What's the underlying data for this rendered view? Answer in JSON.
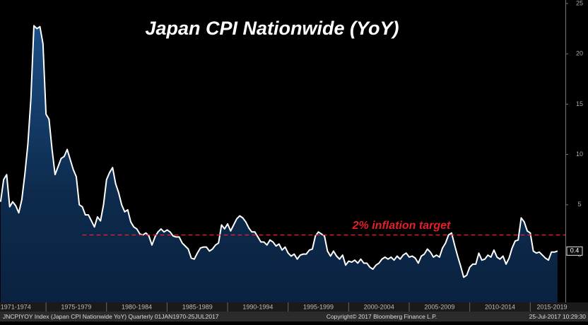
{
  "chart_data": {
    "type": "area",
    "title": "Japan CPI Nationwide (YoY)",
    "footer_left": "JNCPIYOY Index (Japan CPI Nationwide YoY)  Quarterly 01JAN1970-25JUL2017",
    "footer_center": "Copyright© 2017 Bloomberg Finance L.P.",
    "footer_right": "25-Jul-2017 10:29:30",
    "xlim": [
      1971.2,
      2017.9
    ],
    "ylim": [
      -4.7,
      25.35
    ],
    "yticks": [
      0,
      5,
      10,
      15,
      20,
      25
    ],
    "xticks": [
      {
        "value": 1972.5,
        "label": "1971-1974"
      },
      {
        "value": 1977.5,
        "label": "1975-1979"
      },
      {
        "value": 1982.5,
        "label": "1980-1984"
      },
      {
        "value": 1987.5,
        "label": "1985-1989"
      },
      {
        "value": 1992.5,
        "label": "1990-1994"
      },
      {
        "value": 1997.5,
        "label": "1995-1999"
      },
      {
        "value": 2002.5,
        "label": "2000-2004"
      },
      {
        "value": 2007.5,
        "label": "2005-2009"
      },
      {
        "value": 2012.5,
        "label": "2010-2014"
      },
      {
        "value": 2017.5,
        "label": "2015-2019"
      }
    ],
    "reference_line": {
      "value": 2,
      "x_start": 1978,
      "label": "2% inflation target",
      "color": "#e3202a"
    },
    "x": [
      1971.25,
      1971.5,
      1971.75,
      1972,
      1972.25,
      1972.5,
      1972.75,
      1973,
      1973.25,
      1973.5,
      1973.75,
      1974,
      1974.25,
      1974.5,
      1974.75,
      1975,
      1975.25,
      1975.5,
      1975.75,
      1976,
      1976.25,
      1976.5,
      1976.75,
      1977,
      1977.25,
      1977.5,
      1977.75,
      1978,
      1978.25,
      1978.5,
      1978.75,
      1979,
      1979.25,
      1979.5,
      1979.75,
      1980,
      1980.25,
      1980.5,
      1980.75,
      1981,
      1981.25,
      1981.5,
      1981.75,
      1982,
      1982.25,
      1982.5,
      1982.75,
      1983,
      1983.25,
      1983.5,
      1983.75,
      1984,
      1984.25,
      1984.5,
      1984.75,
      1985,
      1985.25,
      1985.5,
      1985.75,
      1986,
      1986.25,
      1986.5,
      1986.75,
      1987,
      1987.25,
      1987.5,
      1987.75,
      1988,
      1988.25,
      1988.5,
      1988.75,
      1989,
      1989.25,
      1989.5,
      1989.75,
      1990,
      1990.25,
      1990.5,
      1990.75,
      1991,
      1991.25,
      1991.5,
      1991.75,
      1992,
      1992.25,
      1992.5,
      1992.75,
      1993,
      1993.25,
      1993.5,
      1993.75,
      1994,
      1994.25,
      1994.5,
      1994.75,
      1995,
      1995.25,
      1995.5,
      1995.75,
      1996,
      1996.25,
      1996.5,
      1996.75,
      1997,
      1997.25,
      1997.5,
      1997.75,
      1998,
      1998.25,
      1998.5,
      1998.75,
      1999,
      1999.25,
      1999.5,
      1999.75,
      2000,
      2000.25,
      2000.5,
      2000.75,
      2001,
      2001.25,
      2001.5,
      2001.75,
      2002,
      2002.25,
      2002.5,
      2002.75,
      2003,
      2003.25,
      2003.5,
      2003.75,
      2004,
      2004.25,
      2004.5,
      2004.75,
      2005,
      2005.25,
      2005.5,
      2005.75,
      2006,
      2006.25,
      2006.5,
      2006.75,
      2007,
      2007.25,
      2007.5,
      2007.75,
      2008,
      2008.25,
      2008.5,
      2008.75,
      2009,
      2009.25,
      2009.5,
      2009.75,
      2010,
      2010.25,
      2010.5,
      2010.75,
      2011,
      2011.25,
      2011.5,
      2011.75,
      2012,
      2012.25,
      2012.5,
      2012.75,
      2013,
      2013.25,
      2013.5,
      2013.75,
      2014,
      2014.25,
      2014.5,
      2014.75,
      2015,
      2015.25,
      2015.5,
      2015.75,
      2016,
      2016.25,
      2016.5,
      2016.75,
      2017,
      2017.25
    ],
    "series": [
      {
        "name": "JNCPIYOY Index",
        "color": "#ffffff",
        "values": [
          5.3,
          7.5,
          8.0,
          4.8,
          5.3,
          4.9,
          4.2,
          5.5,
          8.0,
          11.0,
          15.5,
          22.8,
          22.5,
          22.7,
          21.0,
          14.0,
          13.5,
          10.5,
          8.0,
          8.8,
          9.6,
          9.8,
          10.5,
          9.5,
          8.5,
          7.8,
          5.0,
          4.8,
          4.0,
          4.0,
          3.4,
          2.8,
          3.8,
          3.4,
          5.0,
          7.5,
          8.2,
          8.7,
          7.1,
          6.2,
          5.0,
          4.3,
          4.5,
          3.3,
          2.8,
          2.6,
          2.1,
          2.0,
          2.2,
          1.9,
          1.0,
          1.8,
          2.3,
          2.6,
          2.3,
          2.5,
          2.3,
          1.9,
          1.8,
          1.8,
          1.2,
          0.9,
          0.6,
          -0.3,
          -0.4,
          0.2,
          0.7,
          0.8,
          0.8,
          0.4,
          0.6,
          1.0,
          1.2,
          3.0,
          2.6,
          3.1,
          2.4,
          3.0,
          3.6,
          3.9,
          3.7,
          3.3,
          2.7,
          2.3,
          2.3,
          1.8,
          1.3,
          1.3,
          1.0,
          1.5,
          1.3,
          0.9,
          1.1,
          0.5,
          0.8,
          0.2,
          -0.1,
          0.1,
          -0.4,
          0.0,
          0.1,
          0.1,
          0.5,
          0.6,
          1.9,
          2.3,
          2.1,
          1.9,
          0.4,
          -0.1,
          0.4,
          -0.1,
          -0.4,
          0.0,
          -1.0,
          -0.6,
          -0.7,
          -0.5,
          -0.8,
          -0.4,
          -0.8,
          -0.8,
          -1.2,
          -1.4,
          -1.0,
          -0.8,
          -0.4,
          -0.2,
          -0.4,
          -0.2,
          -0.5,
          -0.1,
          -0.4,
          0.0,
          0.2,
          -0.2,
          -0.1,
          -0.3,
          -0.8,
          -0.1,
          0.1,
          0.6,
          0.3,
          -0.2,
          0.0,
          -0.2,
          0.7,
          1.2,
          2.0,
          2.2,
          1.0,
          -0.1,
          -1.1,
          -2.2,
          -2.0,
          -1.2,
          -0.9,
          -0.9,
          0.2,
          -0.5,
          -0.4,
          0.0,
          -0.2,
          0.5,
          -0.2,
          -0.4,
          -0.1,
          -0.9,
          -0.3,
          0.7,
          1.4,
          1.5,
          3.7,
          3.3,
          2.4,
          2.2,
          0.4,
          0.2,
          0.3,
          0.0,
          -0.3,
          -0.5,
          0.3,
          0.3,
          0.4
        ]
      }
    ]
  }
}
